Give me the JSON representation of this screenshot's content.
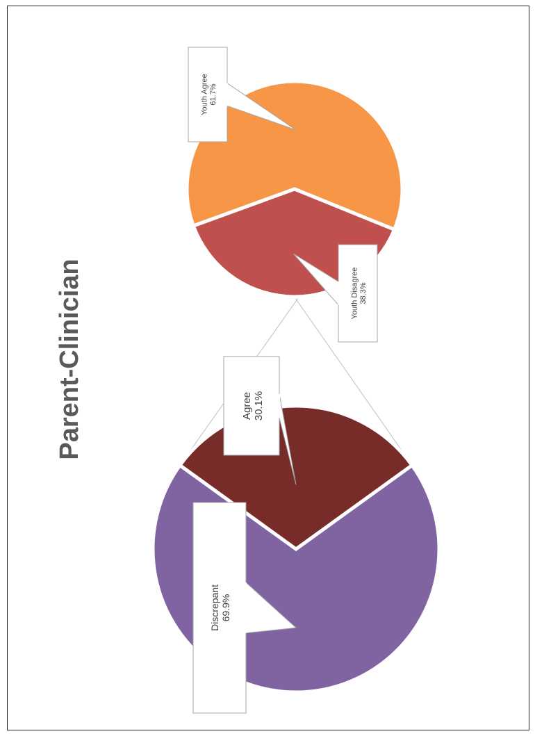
{
  "chart_data": {
    "type": "pie",
    "title": "Parent-Clinician",
    "orientation": "rotated-90-ccw",
    "main_pie": {
      "slices": [
        {
          "label": "Discrepant",
          "value": 69.9,
          "value_label": "69.9%",
          "color": "#8064a2"
        },
        {
          "label": "Agree",
          "value": 30.1,
          "value_label": "30.1%",
          "color": "#772c2a"
        }
      ]
    },
    "breakdown_pie": {
      "of": "Agree",
      "slices": [
        {
          "label": "Youth Agree",
          "value": 61.7,
          "value_label": "61.7%",
          "color": "#f79646"
        },
        {
          "label": "Youth Disagree",
          "value": 38.3,
          "value_label": "38.3%",
          "color": "#c0504d"
        }
      ]
    }
  }
}
